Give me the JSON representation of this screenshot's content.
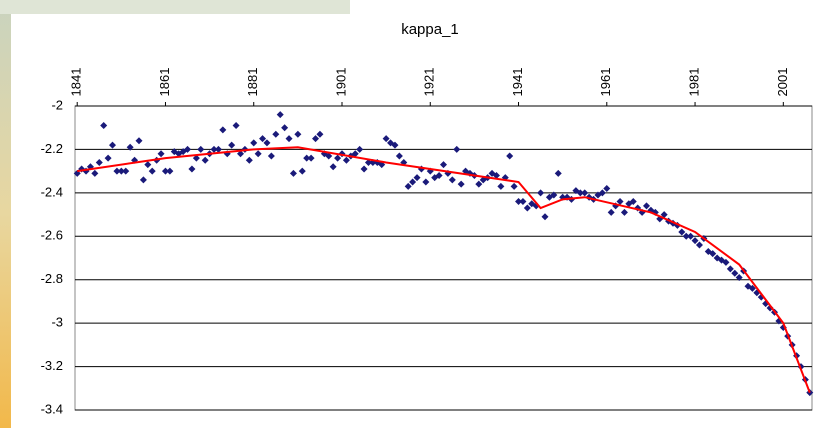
{
  "chart_data": {
    "type": "scatter",
    "title": "kappa_1",
    "xlim": [
      1840.5,
      2007.5
    ],
    "xticks": [
      1841,
      1861,
      1881,
      1901,
      1921,
      1941,
      1961,
      1981,
      2001
    ],
    "ylim": [
      -3.4,
      -2
    ],
    "yticks": [
      -2,
      -2.2,
      -2.4,
      -2.6,
      -2.8,
      -3,
      -3.2,
      -3.4
    ],
    "grid": true,
    "series": [
      {
        "kind": "points",
        "color": "#1a1a7a",
        "x": [
          1841,
          1842,
          1843,
          1844,
          1845,
          1846,
          1847,
          1848,
          1849,
          1850,
          1851,
          1852,
          1853,
          1854,
          1855,
          1856,
          1857,
          1858,
          1859,
          1860,
          1861,
          1862,
          1863,
          1864,
          1865,
          1866,
          1867,
          1868,
          1869,
          1870,
          1871,
          1872,
          1873,
          1874,
          1875,
          1876,
          1877,
          1878,
          1879,
          1880,
          1881,
          1882,
          1883,
          1884,
          1885,
          1886,
          1887,
          1888,
          1889,
          1890,
          1891,
          1892,
          1893,
          1894,
          1895,
          1896,
          1897,
          1898,
          1899,
          1900,
          1901,
          1902,
          1903,
          1904,
          1905,
          1906,
          1907,
          1908,
          1909,
          1910,
          1911,
          1912,
          1913,
          1914,
          1915,
          1916,
          1917,
          1918,
          1919,
          1920,
          1921,
          1922,
          1923,
          1924,
          1925,
          1926,
          1927,
          1928,
          1929,
          1930,
          1931,
          1932,
          1933,
          1934,
          1935,
          1936,
          1937,
          1938,
          1939,
          1940,
          1941,
          1942,
          1943,
          1944,
          1945,
          1946,
          1947,
          1948,
          1949,
          1950,
          1951,
          1952,
          1953,
          1954,
          1955,
          1956,
          1957,
          1958,
          1959,
          1960,
          1961,
          1962,
          1963,
          1964,
          1965,
          1966,
          1967,
          1968,
          1969,
          1970,
          1971,
          1972,
          1973,
          1974,
          1975,
          1976,
          1977,
          1978,
          1979,
          1980,
          1981,
          1982,
          1983,
          1984,
          1985,
          1986,
          1987,
          1988,
          1989,
          1990,
          1991,
          1992,
          1993,
          1994,
          1995,
          1996,
          1997,
          1998,
          1999,
          2000,
          2001,
          2002,
          2003,
          2004,
          2005,
          2006,
          2007
        ],
        "values": [
          -2.31,
          -2.29,
          -2.3,
          -2.28,
          -2.31,
          -2.26,
          -2.09,
          -2.24,
          -2.18,
          -2.3,
          -2.3,
          -2.3,
          -2.19,
          -2.25,
          -2.16,
          -2.34,
          -2.27,
          -2.3,
          -2.25,
          -2.22,
          -2.3,
          -2.3,
          -2.21,
          -2.22,
          -2.21,
          -2.2,
          -2.29,
          -2.24,
          -2.2,
          -2.25,
          -2.22,
          -2.2,
          -2.2,
          -2.11,
          -2.22,
          -2.18,
          -2.09,
          -2.22,
          -2.2,
          -2.25,
          -2.17,
          -2.22,
          -2.15,
          -2.17,
          -2.23,
          -2.13,
          -2.04,
          -2.1,
          -2.15,
          -2.31,
          -2.13,
          -2.3,
          -2.24,
          -2.24,
          -2.15,
          -2.13,
          -2.22,
          -2.23,
          -2.28,
          -2.24,
          -2.22,
          -2.25,
          -2.23,
          -2.22,
          -2.2,
          -2.29,
          -2.26,
          -2.26,
          -2.26,
          -2.27,
          -2.15,
          -2.17,
          -2.18,
          -2.23,
          -2.26,
          -2.37,
          -2.35,
          -2.33,
          -2.29,
          -2.35,
          -2.3,
          -2.33,
          -2.32,
          -2.27,
          -2.31,
          -2.34,
          -2.2,
          -2.36,
          -2.3,
          -2.31,
          -2.32,
          -2.36,
          -2.34,
          -2.33,
          -2.31,
          -2.32,
          -2.37,
          -2.33,
          -2.23,
          -2.37,
          -2.44,
          -2.44,
          -2.47,
          -2.45,
          -2.46,
          -2.4,
          -2.51,
          -2.42,
          -2.41,
          -2.31,
          -2.42,
          -2.42,
          -2.43,
          -2.39,
          -2.4,
          -2.4,
          -2.42,
          -2.43,
          -2.41,
          -2.4,
          -2.38,
          -2.49,
          -2.46,
          -2.44,
          -2.49,
          -2.45,
          -2.44,
          -2.47,
          -2.49,
          -2.46,
          -2.48,
          -2.49,
          -2.52,
          -2.5,
          -2.53,
          -2.54,
          -2.55,
          -2.58,
          -2.6,
          -2.6,
          -2.62,
          -2.64,
          -2.61,
          -2.67,
          -2.68,
          -2.7,
          -2.71,
          -2.72,
          -2.75,
          -2.77,
          -2.79,
          -2.76,
          -2.83,
          -2.84,
          -2.86,
          -2.88,
          -2.91,
          -2.93,
          -2.95,
          -2.99,
          -3.02,
          -3.06,
          -3.1,
          -3.15,
          -3.2,
          -3.26,
          -3.32
        ]
      },
      {
        "kind": "line",
        "color": "#ff0000",
        "x": [
          1841,
          1861,
          1881,
          1891,
          1911,
          1931,
          1941,
          1946,
          1951,
          1956,
          1971,
          1981,
          1991,
          2001,
          2007
        ],
        "values": [
          -2.3,
          -2.24,
          -2.2,
          -2.19,
          -2.26,
          -2.32,
          -2.35,
          -2.47,
          -2.43,
          -2.42,
          -2.49,
          -2.58,
          -2.73,
          -3.0,
          -3.32
        ]
      }
    ]
  }
}
